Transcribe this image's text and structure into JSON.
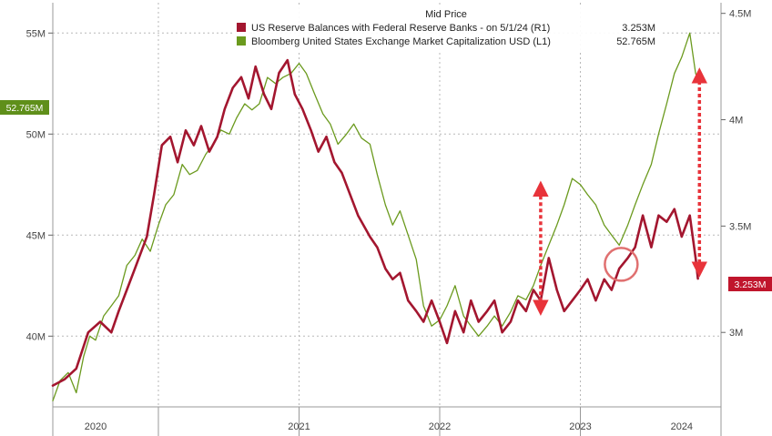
{
  "chart_data": {
    "type": "line",
    "title": "",
    "legend": {
      "title": "Mid Price",
      "placement": "top-center",
      "entries": [
        {
          "label": "US Reserve Balances with Federal Reserve Banks -   on 5/1/24  (R1)",
          "value": "3.253M",
          "color": "#a3162f"
        },
        {
          "label": "Bloomberg United States Exchange Market Capitalization USD  (L1)",
          "value": "52.765M",
          "color": "#6b9a1e"
        }
      ]
    },
    "x_axis": {
      "type": "date",
      "range": [
        "2019-10-01",
        "2024-06-30"
      ],
      "year_labels": [
        {
          "label": "2020",
          "mid": "2020-01-20"
        },
        {
          "label": "2021",
          "mid": "2021-07-01"
        },
        {
          "label": "2022",
          "mid": "2022-07-01"
        },
        {
          "label": "2023",
          "mid": "2023-07-01"
        },
        {
          "label": "2024",
          "mid": "2024-03-20"
        }
      ],
      "year_boundaries": [
        "2020-07-01",
        "2021-07-01",
        "2022-07-01",
        "2023-07-01"
      ]
    },
    "y_left": {
      "range": [
        36.5,
        56.5
      ],
      "ticks": [
        40,
        45,
        50,
        55
      ],
      "tick_labels": [
        "40M",
        "45M",
        "50M",
        "55M"
      ],
      "last_value_label": "52.765M",
      "last_value": 52.765
    },
    "y_right": {
      "range": [
        2.65,
        4.55
      ],
      "ticks": [
        3.0,
        3.5,
        4.0,
        4.5
      ],
      "tick_labels": [
        "3M",
        "3.5M",
        "4M",
        "4.5M"
      ],
      "last_value_label": "3.253M",
      "last_value": 3.253
    },
    "grid": true,
    "series": [
      {
        "name": "Bloomberg United States Exchange Market Capitalization USD",
        "axis": "left",
        "color": "#6b9a1e",
        "points": [
          [
            "2019-10-01",
            36.8
          ],
          [
            "2019-10-20",
            37.8
          ],
          [
            "2019-11-10",
            38.2
          ],
          [
            "2019-12-01",
            37.2
          ],
          [
            "2019-12-20",
            39.0
          ],
          [
            "2020-01-05",
            40.0
          ],
          [
            "2020-01-20",
            39.8
          ],
          [
            "2020-02-10",
            41.0
          ],
          [
            "2020-03-01",
            41.5
          ],
          [
            "2020-03-20",
            42.0
          ],
          [
            "2020-04-10",
            43.5
          ],
          [
            "2020-05-01",
            44.0
          ],
          [
            "2020-05-20",
            44.8
          ],
          [
            "2020-06-10",
            44.2
          ],
          [
            "2020-07-01",
            45.5
          ],
          [
            "2020-07-20",
            46.5
          ],
          [
            "2020-08-10",
            47.0
          ],
          [
            "2020-09-01",
            48.5
          ],
          [
            "2020-09-20",
            48.0
          ],
          [
            "2020-10-10",
            48.2
          ],
          [
            "2020-11-01",
            49.0
          ],
          [
            "2020-11-20",
            49.5
          ],
          [
            "2020-12-10",
            50.2
          ],
          [
            "2021-01-01",
            50.0
          ],
          [
            "2021-01-20",
            50.8
          ],
          [
            "2021-02-10",
            51.5
          ],
          [
            "2021-03-01",
            51.2
          ],
          [
            "2021-03-20",
            51.5
          ],
          [
            "2021-04-10",
            52.8
          ],
          [
            "2021-05-01",
            52.5
          ],
          [
            "2021-05-20",
            52.8
          ],
          [
            "2021-06-10",
            53.0
          ],
          [
            "2021-07-01",
            53.5
          ],
          [
            "2021-07-20",
            53.0
          ],
          [
            "2021-08-10",
            52.0
          ],
          [
            "2021-09-01",
            51.0
          ],
          [
            "2021-09-20",
            50.5
          ],
          [
            "2021-10-10",
            49.5
          ],
          [
            "2021-11-01",
            50.0
          ],
          [
            "2021-11-20",
            50.5
          ],
          [
            "2021-12-10",
            49.8
          ],
          [
            "2022-01-01",
            49.5
          ],
          [
            "2022-01-20",
            48.0
          ],
          [
            "2022-02-10",
            46.5
          ],
          [
            "2022-03-01",
            45.5
          ],
          [
            "2022-03-20",
            46.2
          ],
          [
            "2022-04-10",
            45.0
          ],
          [
            "2022-05-01",
            43.8
          ],
          [
            "2022-05-20",
            41.5
          ],
          [
            "2022-06-10",
            40.5
          ],
          [
            "2022-07-01",
            40.8
          ],
          [
            "2022-07-20",
            41.5
          ],
          [
            "2022-08-10",
            42.5
          ],
          [
            "2022-09-01",
            41.0
          ],
          [
            "2022-09-20",
            40.5
          ],
          [
            "2022-10-10",
            40.0
          ],
          [
            "2022-11-01",
            40.5
          ],
          [
            "2022-11-20",
            41.0
          ],
          [
            "2022-12-10",
            40.5
          ],
          [
            "2023-01-01",
            41.2
          ],
          [
            "2023-01-20",
            42.0
          ],
          [
            "2023-02-10",
            41.8
          ],
          [
            "2023-03-01",
            42.5
          ],
          [
            "2023-03-20",
            43.5
          ],
          [
            "2023-04-10",
            44.5
          ],
          [
            "2023-05-01",
            45.5
          ],
          [
            "2023-05-20",
            46.5
          ],
          [
            "2023-06-10",
            47.8
          ],
          [
            "2023-07-01",
            47.5
          ],
          [
            "2023-07-20",
            47.0
          ],
          [
            "2023-08-10",
            46.5
          ],
          [
            "2023-09-01",
            45.5
          ],
          [
            "2023-09-20",
            45.0
          ],
          [
            "2023-10-10",
            44.5
          ],
          [
            "2023-11-01",
            45.5
          ],
          [
            "2023-11-20",
            46.5
          ],
          [
            "2023-12-10",
            47.5
          ],
          [
            "2024-01-01",
            48.5
          ],
          [
            "2024-01-20",
            50.0
          ],
          [
            "2024-02-10",
            51.5
          ],
          [
            "2024-03-01",
            53.0
          ],
          [
            "2024-03-20",
            53.8
          ],
          [
            "2024-04-10",
            55.0
          ],
          [
            "2024-04-25",
            53.0
          ],
          [
            "2024-05-01",
            52.765
          ]
        ]
      },
      {
        "name": "US Reserve Balances with Federal Reserve Banks",
        "axis": "right",
        "color": "#a3162f",
        "points": [
          [
            "2019-10-01",
            2.75
          ],
          [
            "2019-11-01",
            2.78
          ],
          [
            "2019-12-01",
            2.83
          ],
          [
            "2020-01-01",
            3.0
          ],
          [
            "2020-02-01",
            3.05
          ],
          [
            "2020-03-01",
            3.0
          ],
          [
            "2020-03-20",
            3.1
          ],
          [
            "2020-04-10",
            3.2
          ],
          [
            "2020-05-01",
            3.3
          ],
          [
            "2020-06-01",
            3.45
          ],
          [
            "2020-06-20",
            3.65
          ],
          [
            "2020-07-10",
            3.88
          ],
          [
            "2020-08-01",
            3.92
          ],
          [
            "2020-08-20",
            3.8
          ],
          [
            "2020-09-10",
            3.95
          ],
          [
            "2020-10-01",
            3.88
          ],
          [
            "2020-10-20",
            3.97
          ],
          [
            "2020-11-10",
            3.85
          ],
          [
            "2020-12-01",
            3.92
          ],
          [
            "2020-12-20",
            4.05
          ],
          [
            "2021-01-10",
            4.15
          ],
          [
            "2021-02-01",
            4.2
          ],
          [
            "2021-02-20",
            4.1
          ],
          [
            "2021-03-10",
            4.25
          ],
          [
            "2021-04-01",
            4.12
          ],
          [
            "2021-04-20",
            4.05
          ],
          [
            "2021-05-10",
            4.22
          ],
          [
            "2021-06-01",
            4.28
          ],
          [
            "2021-06-20",
            4.12
          ],
          [
            "2021-07-10",
            4.05
          ],
          [
            "2021-08-01",
            3.95
          ],
          [
            "2021-08-20",
            3.85
          ],
          [
            "2021-09-10",
            3.92
          ],
          [
            "2021-10-01",
            3.8
          ],
          [
            "2021-10-20",
            3.75
          ],
          [
            "2021-11-10",
            3.65
          ],
          [
            "2021-12-01",
            3.55
          ],
          [
            "2022-01-01",
            3.45
          ],
          [
            "2022-01-20",
            3.4
          ],
          [
            "2022-02-10",
            3.3
          ],
          [
            "2022-03-01",
            3.25
          ],
          [
            "2022-03-20",
            3.28
          ],
          [
            "2022-04-10",
            3.15
          ],
          [
            "2022-05-01",
            3.1
          ],
          [
            "2022-05-20",
            3.05
          ],
          [
            "2022-06-10",
            3.15
          ],
          [
            "2022-07-01",
            3.05
          ],
          [
            "2022-07-20",
            2.95
          ],
          [
            "2022-08-10",
            3.1
          ],
          [
            "2022-09-01",
            3.0
          ],
          [
            "2022-09-20",
            3.15
          ],
          [
            "2022-10-10",
            3.05
          ],
          [
            "2022-11-01",
            3.1
          ],
          [
            "2022-11-20",
            3.15
          ],
          [
            "2022-12-10",
            3.0
          ],
          [
            "2023-01-01",
            3.05
          ],
          [
            "2023-01-20",
            3.15
          ],
          [
            "2023-02-10",
            3.1
          ],
          [
            "2023-03-01",
            3.2
          ],
          [
            "2023-03-20",
            3.15
          ],
          [
            "2023-04-10",
            3.35
          ],
          [
            "2023-05-01",
            3.2
          ],
          [
            "2023-05-20",
            3.1
          ],
          [
            "2023-06-10",
            3.15
          ],
          [
            "2023-07-01",
            3.2
          ],
          [
            "2023-07-20",
            3.25
          ],
          [
            "2023-08-10",
            3.15
          ],
          [
            "2023-09-01",
            3.25
          ],
          [
            "2023-09-20",
            3.2
          ],
          [
            "2023-10-10",
            3.3
          ],
          [
            "2023-11-01",
            3.35
          ],
          [
            "2023-11-20",
            3.4
          ],
          [
            "2023-12-10",
            3.55
          ],
          [
            "2024-01-01",
            3.4
          ],
          [
            "2024-01-20",
            3.55
          ],
          [
            "2024-02-10",
            3.52
          ],
          [
            "2024-03-01",
            3.58
          ],
          [
            "2024-03-20",
            3.45
          ],
          [
            "2024-04-10",
            3.55
          ],
          [
            "2024-04-25",
            3.35
          ],
          [
            "2024-05-01",
            3.253
          ]
        ]
      }
    ],
    "annotations": [
      {
        "type": "double-arrow",
        "x": "2023-03-20",
        "from_axis": "left",
        "y1": 47.3,
        "y2": 41.4,
        "color": "#e8333a"
      },
      {
        "type": "double-arrow",
        "x": "2024-05-05",
        "from_axis": "left",
        "y1": 52.9,
        "y2": 43.3,
        "color": "#e8333a"
      },
      {
        "type": "circle",
        "x": "2023-10-15",
        "axis": "right",
        "y": 3.32,
        "color": "#e07070"
      }
    ]
  }
}
